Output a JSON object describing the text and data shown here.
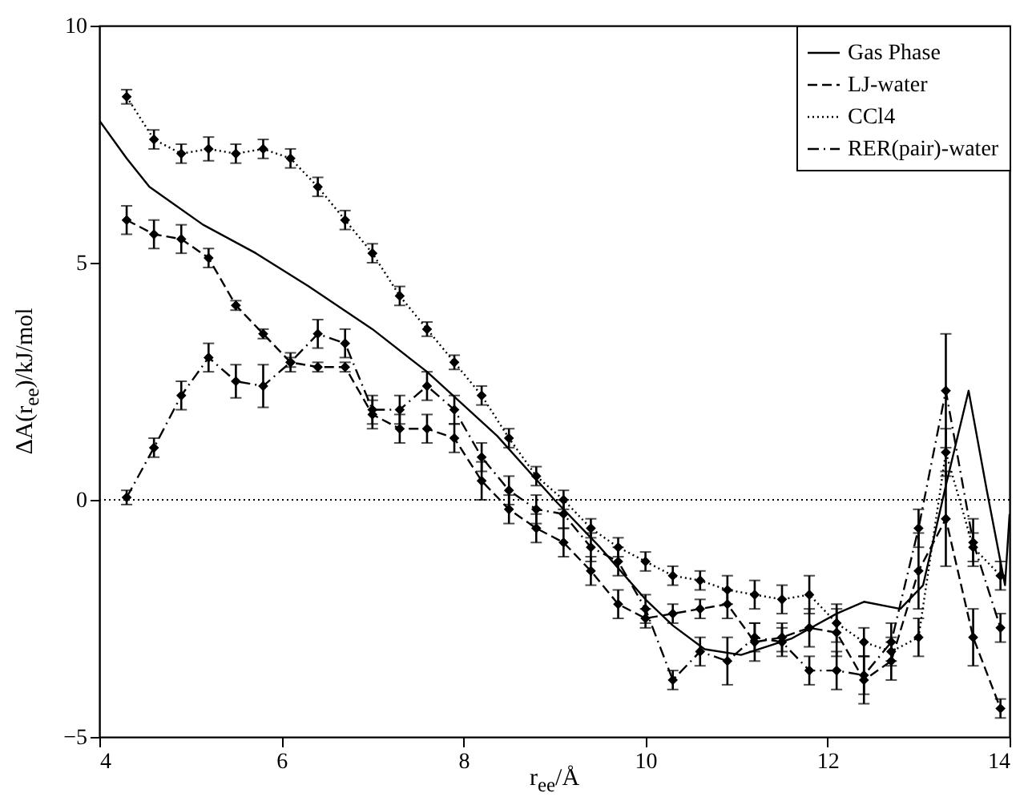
{
  "chart_data": {
    "type": "line",
    "xlabel": "r$_{ee}$/Å",
    "ylabel": "ΔA(r$_{ee}$)/kJ/mol",
    "xlim": [
      4,
      14
    ],
    "ylim": [
      -5,
      10
    ],
    "xticks": [
      4,
      6,
      8,
      10,
      12,
      14
    ],
    "yticks": [
      -5,
      0,
      5,
      10
    ],
    "grid": false,
    "legend": "top right",
    "x": [
      4.3,
      4.6,
      4.9,
      5.2,
      5.5,
      5.8,
      6.1,
      6.4,
      6.7,
      7.0,
      7.3,
      7.6,
      7.9,
      8.2,
      8.5,
      8.8,
      9.1,
      9.4,
      9.7,
      10.0,
      10.3,
      10.6,
      10.9,
      11.2,
      11.5,
      11.8,
      12.1,
      12.4,
      12.7,
      13.0,
      13.3,
      13.6,
      13.9
    ],
    "ref_lines": [
      {
        "axis": "y",
        "value": 0,
        "line_style": "dotted",
        "color": "#000000"
      }
    ],
    "series": [
      {
        "name": "Gas Phase",
        "color": "#000000",
        "line_style": "solid",
        "marker": "none",
        "x": [
          4.0,
          4.3,
          4.55,
          5.14,
          5.72,
          6.3,
          7.0,
          7.6,
          8.37,
          9.0,
          9.5,
          10.0,
          10.3,
          10.65,
          11.05,
          11.6,
          12.1,
          12.4,
          12.8,
          13.05,
          13.3,
          13.55,
          13.75,
          13.95,
          14.0
        ],
        "values": [
          8.0,
          7.2,
          6.6,
          5.8,
          5.2,
          4.5,
          3.6,
          2.7,
          1.35,
          0.0,
          -1.0,
          -2.1,
          -2.65,
          -3.15,
          -3.27,
          -2.93,
          -2.4,
          -2.15,
          -2.3,
          -1.8,
          0.3,
          2.3,
          0.2,
          -1.8,
          -0.3
        ]
      },
      {
        "name": "LJ-water",
        "color": "#000000",
        "line_style": "dashed",
        "marker": "diamond",
        "values": [
          5.9,
          5.6,
          5.5,
          5.1,
          4.1,
          3.5,
          2.9,
          2.8,
          2.8,
          1.8,
          1.5,
          1.5,
          1.3,
          0.4,
          -0.2,
          -0.6,
          -0.9,
          -1.5,
          -2.2,
          -2.5,
          -2.4,
          -2.3,
          -2.2,
          -3.0,
          -2.9,
          -2.7,
          -2.8,
          -3.8,
          -3.4,
          -1.5,
          -0.4,
          -2.9,
          -4.4
        ],
        "errors": [
          0.3,
          0.3,
          0.3,
          0.2,
          0.1,
          0.1,
          0.1,
          0.1,
          0.1,
          0.3,
          0.3,
          0.3,
          0.3,
          0.4,
          0.3,
          0.3,
          0.3,
          0.3,
          0.3,
          0.2,
          0.2,
          0.2,
          0.3,
          0.4,
          0.3,
          0.4,
          0.5,
          0.5,
          0.4,
          0.8,
          1.0,
          0.6,
          0.2
        ]
      },
      {
        "name": "CCl4",
        "color": "#000000",
        "line_style": "dotted",
        "marker": "diamond",
        "values": [
          8.5,
          7.6,
          7.3,
          7.4,
          7.3,
          7.4,
          7.2,
          6.6,
          5.9,
          5.2,
          4.3,
          3.6,
          2.9,
          2.2,
          1.3,
          0.5,
          0.0,
          -0.6,
          -1.0,
          -1.3,
          -1.6,
          -1.7,
          -1.9,
          -2.0,
          -2.1,
          -2.0,
          -2.6,
          -3.0,
          -3.2,
          -2.9,
          1.0,
          -1.0,
          -1.6
        ],
        "errors": [
          0.15,
          0.2,
          0.2,
          0.25,
          0.2,
          0.2,
          0.2,
          0.2,
          0.2,
          0.2,
          0.2,
          0.15,
          0.15,
          0.2,
          0.2,
          0.2,
          0.2,
          0.2,
          0.2,
          0.2,
          0.2,
          0.2,
          0.3,
          0.3,
          0.3,
          0.4,
          0.4,
          0.3,
          0.3,
          0.4,
          0.5,
          0.3,
          0.3
        ]
      },
      {
        "name": "RER(pair)-water",
        "color": "#000000",
        "line_style": "dashdot",
        "marker": "diamond",
        "values": [
          0.05,
          1.1,
          2.2,
          3.0,
          2.5,
          2.4,
          2.9,
          3.5,
          3.3,
          1.9,
          1.9,
          2.4,
          1.9,
          0.9,
          0.2,
          -0.2,
          -0.3,
          -1.0,
          -1.3,
          -2.3,
          -3.8,
          -3.2,
          -3.4,
          -2.9,
          -3.0,
          -3.6,
          -3.6,
          -3.7,
          -3.0,
          -0.6,
          2.3,
          -0.9,
          -2.7
        ],
        "errors": [
          0.15,
          0.2,
          0.3,
          0.3,
          0.35,
          0.45,
          0.2,
          0.3,
          0.3,
          0.3,
          0.3,
          0.3,
          0.3,
          0.3,
          0.3,
          0.3,
          0.3,
          0.3,
          0.3,
          0.3,
          0.2,
          0.3,
          0.5,
          0.3,
          0.3,
          0.3,
          0.4,
          0.4,
          0.4,
          0.4,
          1.2,
          0.5,
          0.3
        ]
      }
    ]
  }
}
